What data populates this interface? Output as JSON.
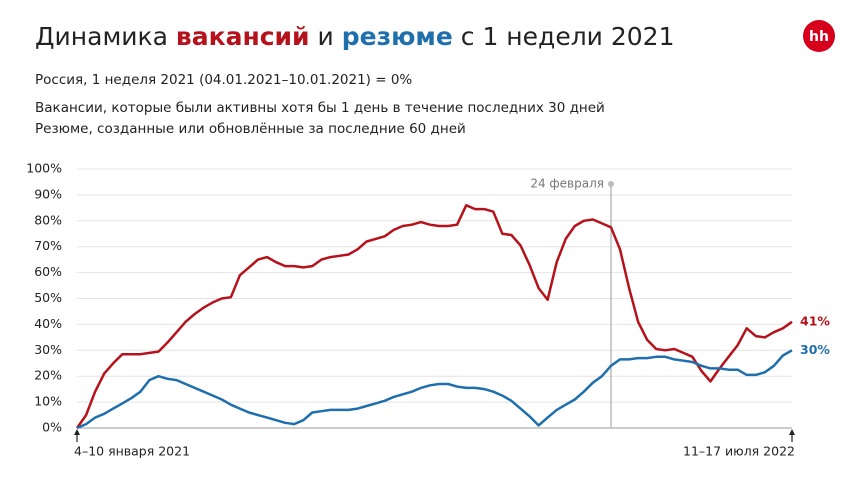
{
  "chart_data": {
    "type": "line",
    "title": [
      "Динамика ",
      "вакансий",
      " и ",
      "резюме",
      " с 1 недели 2021"
    ],
    "title_colors": [
      "#222222",
      "#b5121b",
      "#222222",
      "#1f6fad",
      "#222222"
    ],
    "logo": "hh",
    "subtitle": "Россия, 1 неделя 2021 (04.01.2021–10.01.2021) = 0%",
    "notes": [
      "Вакансии, которые были активны хотя бы 1 день в течение последних 30 дней",
      "Резюме, созданные или обновлённые за последние 60 дней"
    ],
    "categories": [
      "4–10 января 2021",
      null,
      null,
      null,
      null,
      null,
      null,
      null,
      null,
      null,
      null,
      null,
      null,
      null,
      null,
      null,
      null,
      null,
      null,
      null,
      null,
      null,
      null,
      null,
      null,
      null,
      null,
      null,
      null,
      null,
      null,
      null,
      null,
      null,
      null,
      null,
      null,
      null,
      null,
      null,
      null,
      null,
      null,
      null,
      null,
      null,
      null,
      null,
      null,
      null,
      null,
      null,
      null,
      null,
      null,
      null,
      null,
      null,
      null,
      null,
      null,
      null,
      null,
      null,
      null,
      null,
      null,
      null,
      null,
      null,
      null,
      null,
      null,
      null,
      null,
      null,
      null,
      null,
      null,
      "11–17 июля 2022"
    ],
    "annotation": {
      "text": "24 февраля",
      "category_index": 59
    },
    "series": [
      {
        "color": "#b5121b",
        "values": [
          0,
          5,
          14,
          21,
          25,
          28.5,
          28.5,
          28.5,
          29,
          29.5,
          33,
          37,
          41,
          44,
          46.5,
          48.5,
          50,
          50.5,
          59,
          62,
          65,
          66,
          64,
          62.5,
          62.5,
          62,
          62.5,
          65,
          66,
          66.5,
          67,
          69,
          72,
          73,
          74,
          76.5,
          78,
          78.5,
          79.5,
          78.5,
          78,
          78,
          78.5,
          86,
          84.5,
          84.5,
          83.5,
          75,
          74.5,
          70.5,
          63,
          54,
          49.5,
          64,
          73,
          78,
          80,
          80.5,
          79,
          77.5,
          69,
          54,
          41,
          34,
          30.5,
          30,
          30.5,
          29,
          27.5,
          22,
          18,
          23,
          27.5,
          32,
          38.5,
          35.5,
          35,
          37,
          38.5,
          41
        ],
        "value_labels": [
          null,
          null,
          null,
          null,
          null,
          null,
          null,
          null,
          null,
          null,
          null,
          null,
          null,
          null,
          null,
          null,
          null,
          null,
          null,
          null,
          null,
          null,
          null,
          null,
          null,
          null,
          null,
          null,
          null,
          null,
          null,
          null,
          null,
          null,
          null,
          null,
          null,
          null,
          null,
          null,
          null,
          null,
          null,
          null,
          null,
          null,
          null,
          null,
          null,
          null,
          null,
          null,
          null,
          null,
          null,
          null,
          null,
          null,
          null,
          null,
          null,
          null,
          null,
          null,
          null,
          null,
          null,
          null,
          null,
          null,
          null,
          null,
          null,
          null,
          null,
          null,
          null,
          null,
          null,
          "41%"
        ]
      },
      {
        "color": "#1f6fad",
        "values": [
          0,
          1.5,
          4,
          5.5,
          7.5,
          9.5,
          11.5,
          14,
          18.5,
          20,
          19,
          18.5,
          17,
          15.5,
          14,
          12.5,
          11,
          9,
          7.5,
          6,
          5,
          4,
          3,
          2,
          1.5,
          3,
          6,
          6.5,
          7,
          7,
          7,
          7.5,
          8.5,
          9.5,
          10.5,
          12,
          13,
          14,
          15.5,
          16.5,
          17,
          17,
          16,
          15.5,
          15.5,
          15,
          14,
          12.5,
          10.5,
          7.5,
          4.5,
          1,
          4,
          7,
          9,
          11,
          14,
          17.5,
          20,
          24,
          26.5,
          26.5,
          27,
          27,
          27.5,
          27.5,
          26.5,
          26,
          25.5,
          24,
          23,
          23,
          22.5,
          22.5,
          20.5,
          20.5,
          21.5,
          24,
          28,
          30
        ],
        "value_labels": [
          null,
          null,
          null,
          null,
          null,
          null,
          null,
          null,
          null,
          null,
          null,
          null,
          null,
          null,
          null,
          null,
          null,
          null,
          null,
          null,
          null,
          null,
          null,
          null,
          null,
          null,
          null,
          null,
          null,
          null,
          null,
          null,
          null,
          null,
          null,
          null,
          null,
          null,
          null,
          null,
          null,
          null,
          null,
          null,
          null,
          null,
          null,
          null,
          null,
          null,
          null,
          null,
          null,
          null,
          null,
          null,
          null,
          null,
          null,
          null,
          null,
          null,
          null,
          null,
          null,
          null,
          null,
          null,
          null,
          null,
          null,
          null,
          null,
          null,
          null,
          null,
          null,
          null,
          null,
          "30%"
        ]
      }
    ],
    "ylim": [
      0,
      100
    ],
    "yticks": [
      {
        "value": 0,
        "label": "0%"
      },
      {
        "value": 10,
        "label": "10%"
      },
      {
        "value": 20,
        "label": "20%"
      },
      {
        "value": 30,
        "label": "30%"
      },
      {
        "value": 40,
        "label": "40%"
      },
      {
        "value": 50,
        "label": "50%"
      },
      {
        "value": 60,
        "label": "60%"
      },
      {
        "value": 70,
        "label": "70%"
      },
      {
        "value": 80,
        "label": "80%"
      },
      {
        "value": 90,
        "label": "90%"
      },
      {
        "value": 100,
        "label": "100%"
      }
    ],
    "grid": true
  }
}
